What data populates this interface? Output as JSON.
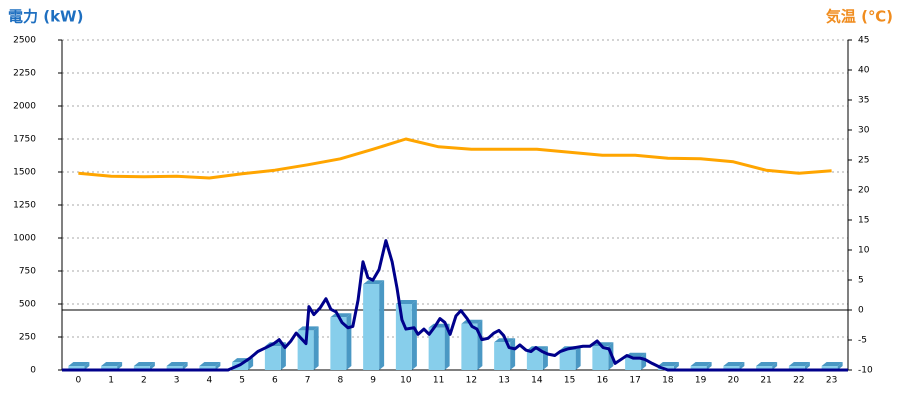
{
  "chart_data": {
    "type": "combo",
    "y_label": "電力 (kW)",
    "y2_label": "気温 (℃)",
    "categories": [
      "0",
      "1",
      "2",
      "3",
      "4",
      "5",
      "6",
      "7",
      "8",
      "9",
      "10",
      "11",
      "12",
      "13",
      "14",
      "15",
      "16",
      "17",
      "18",
      "19",
      "20",
      "21",
      "22",
      "23"
    ],
    "xlim": [
      -0.5,
      23.5
    ],
    "ylim": [
      0,
      2500
    ],
    "yticks": [
      0,
      250,
      500,
      750,
      1000,
      1250,
      1500,
      1750,
      2000,
      2250,
      2500
    ],
    "y2lim": [
      -10,
      45
    ],
    "y2ticks": [
      -10,
      -5,
      0,
      5,
      10,
      15,
      20,
      25,
      30,
      35,
      40,
      45
    ],
    "grid": true,
    "zero_line_y2": 0,
    "series": [
      {
        "type": "bar",
        "color": "#87ceeb",
        "side_color": "#4a98c4",
        "values": [
          30,
          30,
          30,
          30,
          30,
          60,
          180,
          300,
          400,
          650,
          500,
          320,
          350,
          210,
          150,
          150,
          180,
          100,
          30,
          30,
          30,
          30,
          30,
          30
        ]
      },
      {
        "type": "line",
        "color": "#00008b",
        "x": [
          -0.5,
          4.57,
          4.94,
          5.24,
          5.48,
          5.73,
          5.97,
          6.13,
          6.31,
          6.49,
          6.65,
          6.8,
          6.95,
          7.04,
          7.19,
          7.38,
          7.56,
          7.71,
          7.87,
          8.05,
          8.23,
          8.38,
          8.54,
          8.69,
          8.84,
          8.99,
          9.18,
          9.39,
          9.58,
          9.73,
          9.88,
          10.0,
          10.25,
          10.37,
          10.55,
          10.71,
          10.89,
          11.04,
          11.19,
          11.35,
          11.53,
          11.68,
          11.87,
          12.02,
          12.17,
          12.32,
          12.51,
          12.69,
          12.84,
          12.99,
          13.15,
          13.33,
          13.48,
          13.67,
          13.82,
          13.97,
          14.16,
          14.34,
          14.55,
          14.71,
          14.95,
          15.16,
          15.41,
          15.62,
          15.84,
          16.02,
          16.2,
          16.39,
          16.57,
          16.75,
          16.94,
          17.15,
          17.3,
          17.52,
          17.77,
          18.0,
          23.5
        ],
        "values": [
          0,
          0,
          40,
          90,
          140,
          170,
          200,
          230,
          170,
          220,
          280,
          240,
          200,
          480,
          420,
          470,
          540,
          460,
          440,
          360,
          320,
          330,
          530,
          820,
          700,
          680,
          760,
          980,
          820,
          620,
          380,
          310,
          320,
          270,
          310,
          270,
          330,
          390,
          360,
          270,
          410,
          450,
          390,
          330,
          310,
          230,
          240,
          280,
          300,
          260,
          170,
          160,
          190,
          150,
          140,
          170,
          140,
          120,
          110,
          140,
          160,
          170,
          180,
          180,
          220,
          170,
          160,
          50,
          80,
          110,
          90,
          90,
          80,
          50,
          20,
          0,
          0
        ]
      },
      {
        "type": "line",
        "axis": "y2",
        "color": "#ffa500",
        "values": [
          22.8,
          22.3,
          22.2,
          22.3,
          22,
          22.7,
          23.3,
          24.2,
          25.2,
          26.8,
          28.5,
          27.2,
          26.8,
          26.8,
          26.8,
          26.3,
          25.8,
          25.8,
          25.3,
          25.2,
          24.7,
          23.3,
          22.8,
          23.2
        ]
      }
    ]
  }
}
